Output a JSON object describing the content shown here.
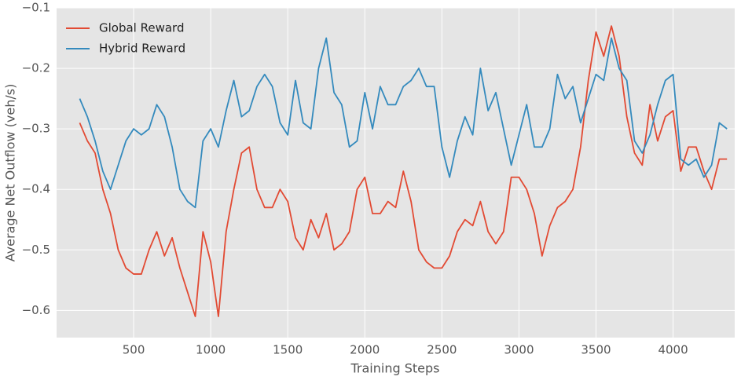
{
  "chart_data": {
    "type": "line",
    "xlabel": "Training Steps",
    "ylabel": "Average Net Outflow (veh/s)",
    "x": [
      150,
      200,
      250,
      300,
      350,
      400,
      450,
      500,
      550,
      600,
      650,
      700,
      750,
      800,
      850,
      900,
      950,
      1000,
      1050,
      1100,
      1150,
      1200,
      1250,
      1300,
      1350,
      1400,
      1450,
      1500,
      1550,
      1600,
      1650,
      1700,
      1750,
      1800,
      1850,
      1900,
      1950,
      2000,
      2050,
      2100,
      2150,
      2200,
      2250,
      2300,
      2350,
      2400,
      2450,
      2500,
      2550,
      2600,
      2650,
      2700,
      2750,
      2800,
      2850,
      2900,
      2950,
      3000,
      3050,
      3100,
      3150,
      3200,
      3250,
      3300,
      3350,
      3400,
      3450,
      3500,
      3550,
      3600,
      3650,
      3700,
      3750,
      3800,
      3850,
      3900,
      3950,
      4000,
      4050,
      4100,
      4150,
      4200,
      4250,
      4300,
      4350
    ],
    "series": [
      {
        "name": "Global Reward",
        "color": "#e24a33",
        "values": [
          -0.29,
          -0.32,
          -0.34,
          -0.4,
          -0.44,
          -0.5,
          -0.53,
          -0.54,
          -0.54,
          -0.5,
          -0.47,
          -0.51,
          -0.48,
          -0.53,
          -0.57,
          -0.61,
          -0.47,
          -0.52,
          -0.61,
          -0.47,
          -0.4,
          -0.34,
          -0.33,
          -0.4,
          -0.43,
          -0.43,
          -0.4,
          -0.42,
          -0.48,
          -0.5,
          -0.45,
          -0.48,
          -0.44,
          -0.5,
          -0.49,
          -0.47,
          -0.4,
          -0.38,
          -0.44,
          -0.44,
          -0.42,
          -0.43,
          -0.37,
          -0.42,
          -0.5,
          -0.52,
          -0.53,
          -0.53,
          -0.51,
          -0.47,
          -0.45,
          -0.46,
          -0.42,
          -0.47,
          -0.49,
          -0.47,
          -0.38,
          -0.38,
          -0.4,
          -0.44,
          -0.51,
          -0.46,
          -0.43,
          -0.42,
          -0.4,
          -0.33,
          -0.22,
          -0.14,
          -0.18,
          -0.13,
          -0.18,
          -0.28,
          -0.34,
          -0.36,
          -0.26,
          -0.32,
          -0.28,
          -0.27,
          -0.37,
          -0.33,
          -0.33,
          -0.37,
          -0.4,
          -0.35,
          -0.35
        ]
      },
      {
        "name": "Hybrid Reward",
        "color": "#348abd",
        "values": [
          -0.25,
          -0.28,
          -0.32,
          -0.37,
          -0.4,
          -0.36,
          -0.32,
          -0.3,
          -0.31,
          -0.3,
          -0.26,
          -0.28,
          -0.33,
          -0.4,
          -0.42,
          -0.43,
          -0.32,
          -0.3,
          -0.33,
          -0.27,
          -0.22,
          -0.28,
          -0.27,
          -0.23,
          -0.21,
          -0.23,
          -0.29,
          -0.31,
          -0.22,
          -0.29,
          -0.3,
          -0.2,
          -0.15,
          -0.24,
          -0.26,
          -0.33,
          -0.32,
          -0.24,
          -0.3,
          -0.23,
          -0.26,
          -0.26,
          -0.23,
          -0.22,
          -0.2,
          -0.23,
          -0.23,
          -0.33,
          -0.38,
          -0.32,
          -0.28,
          -0.31,
          -0.2,
          -0.27,
          -0.24,
          -0.3,
          -0.36,
          -0.31,
          -0.26,
          -0.33,
          -0.33,
          -0.3,
          -0.21,
          -0.25,
          -0.23,
          -0.29,
          -0.25,
          -0.21,
          -0.22,
          -0.15,
          -0.2,
          -0.22,
          -0.32,
          -0.34,
          -0.31,
          -0.26,
          -0.22,
          -0.21,
          -0.35,
          -0.36,
          -0.35,
          -0.38,
          -0.36,
          -0.29,
          -0.3
        ]
      }
    ],
    "xlim": [
      0,
      4400
    ],
    "ylim": [
      -0.645,
      -0.1
    ],
    "xticks": [
      500,
      1000,
      1500,
      2000,
      2500,
      3000,
      3500,
      4000
    ],
    "yticks": [
      {
        "value": -0.6,
        "label": "−0.6"
      },
      {
        "value": -0.5,
        "label": "−0.5"
      },
      {
        "value": -0.4,
        "label": "−0.4"
      },
      {
        "value": -0.3,
        "label": "−0.3"
      },
      {
        "value": -0.2,
        "label": "−0.2"
      },
      {
        "value": -0.1,
        "label": "−0.1"
      }
    ],
    "grid": true,
    "legend": "upper-left"
  }
}
